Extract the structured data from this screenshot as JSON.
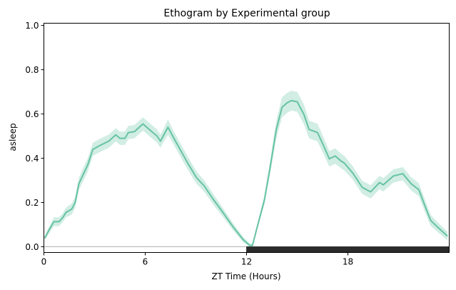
{
  "chart_data": {
    "type": "line",
    "title": "Ethogram by Experimental group",
    "xlabel": "ZT Time (Hours)",
    "ylabel": "asleep",
    "xlim": [
      0,
      24
    ],
    "ylim": [
      -0.026,
      1.01
    ],
    "xticks": [
      0,
      6,
      12,
      18
    ],
    "xtick_labels": [
      "0",
      "6",
      "12",
      "18"
    ],
    "yticks": [
      0.0,
      0.2,
      0.4,
      0.6,
      0.8,
      1.0
    ],
    "ytick_labels": [
      "0.0",
      "0.2",
      "0.4",
      "0.6",
      "0.8",
      "1.0"
    ],
    "grid": false,
    "legend": null,
    "light_dark_bar": [
      {
        "start": 0,
        "end": 12,
        "phase": "light",
        "color": "#ffffff"
      },
      {
        "start": 12,
        "end": 24,
        "phase": "dark",
        "color": "#2b2b2b"
      }
    ],
    "baseline": {
      "y": 0,
      "color": "#aaaaaa"
    },
    "series": [
      {
        "name": "asleep",
        "color": "#66c2a5",
        "x": [
          0.05,
          0.3,
          0.59,
          0.89,
          1.1,
          1.31,
          1.65,
          1.85,
          2.07,
          2.35,
          2.6,
          2.9,
          3.33,
          3.84,
          4.26,
          4.5,
          4.8,
          5.0,
          5.36,
          5.87,
          6.3,
          6.7,
          6.9,
          7.1,
          7.35,
          7.7,
          8.1,
          8.5,
          9.03,
          9.5,
          10.07,
          10.6,
          11.2,
          11.8,
          12.2,
          12.35,
          12.6,
          13.05,
          13.4,
          13.76,
          14.1,
          14.4,
          14.65,
          15.0,
          15.4,
          15.7,
          16.2,
          16.55,
          16.9,
          17.25,
          17.6,
          17.8,
          18.3,
          18.85,
          19.35,
          19.87,
          20.1,
          20.7,
          21.25,
          21.75,
          22.2,
          22.55,
          22.9,
          23.3,
          23.9
        ],
        "mean": [
          0.039,
          0.075,
          0.113,
          0.113,
          0.13,
          0.155,
          0.17,
          0.2,
          0.284,
          0.33,
          0.37,
          0.44,
          0.458,
          0.477,
          0.506,
          0.49,
          0.49,
          0.516,
          0.52,
          0.555,
          0.526,
          0.5,
          0.477,
          0.505,
          0.54,
          0.49,
          0.435,
          0.38,
          0.313,
          0.274,
          0.21,
          0.155,
          0.09,
          0.032,
          0.006,
          0.006,
          0.08,
          0.21,
          0.36,
          0.53,
          0.63,
          0.65,
          0.66,
          0.655,
          0.597,
          0.53,
          0.516,
          0.458,
          0.397,
          0.41,
          0.387,
          0.377,
          0.332,
          0.268,
          0.248,
          0.29,
          0.28,
          0.32,
          0.33,
          0.284,
          0.258,
          0.187,
          0.119,
          0.09,
          0.048
        ],
        "ci": [
          0.01,
          0.015,
          0.02,
          0.02,
          0.02,
          0.022,
          0.025,
          0.025,
          0.028,
          0.03,
          0.03,
          0.03,
          0.03,
          0.03,
          0.03,
          0.03,
          0.03,
          0.03,
          0.03,
          0.03,
          0.03,
          0.03,
          0.03,
          0.03,
          0.035,
          0.03,
          0.03,
          0.03,
          0.028,
          0.026,
          0.024,
          0.02,
          0.016,
          0.012,
          0.008,
          0.008,
          0.012,
          0.02,
          0.03,
          0.04,
          0.045,
          0.045,
          0.045,
          0.045,
          0.045,
          0.04,
          0.04,
          0.038,
          0.035,
          0.035,
          0.033,
          0.033,
          0.03,
          0.03,
          0.03,
          0.03,
          0.03,
          0.03,
          0.03,
          0.03,
          0.03,
          0.028,
          0.025,
          0.022,
          0.02
        ]
      }
    ]
  }
}
